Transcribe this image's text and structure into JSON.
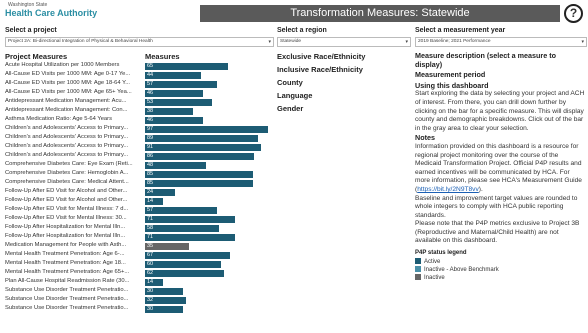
{
  "header": {
    "logo_small": "Washington State",
    "logo_main": "Health Care Authority",
    "title": "Transformation Measures: Statewide",
    "help": "?"
  },
  "filters": [
    {
      "label": "Select a project",
      "selected": "Project 2A: Bi-directional Integration of Physical & Behavioral Health"
    },
    {
      "label": "Select a region",
      "selected": "Statewide"
    },
    {
      "label": "Select a measurement year",
      "selected": "2019 Baseline; 2021 Performance"
    }
  ],
  "measures": {
    "heading": "Project Measures",
    "chart_heading": "Measures",
    "xlim": [
      0,
      100
    ],
    "rows": [
      {
        "name": "Acute Hospital Utilization per 1000 Members",
        "value": 65,
        "color": "#1d5c74"
      },
      {
        "name": "All-Cause ED Visits per 1000 MM: Age 0-17 Ye...",
        "value": 44,
        "color": "#1d5c74"
      },
      {
        "name": "All-Cause ED Visits per 1000 MM: Age 18-64 Y...",
        "value": 57,
        "color": "#1d5c74"
      },
      {
        "name": "All-Cause ED Visits per 1000 MM: Age 65+ Yea...",
        "value": 46,
        "color": "#1d5c74"
      },
      {
        "name": "Antidepressant Medication Management: Acu...",
        "value": 53,
        "color": "#1d5c74"
      },
      {
        "name": "Antidepressant Medication Management: Con...",
        "value": 38,
        "color": "#1d5c74"
      },
      {
        "name": "Asthma Medication Ratio: Age 5-64 Years",
        "value": 46,
        "color": "#1d5c74"
      },
      {
        "name": "Children's and Adolescents' Access to Primary...",
        "value": 97,
        "color": "#1d5c74"
      },
      {
        "name": "Children's and Adolescents' Access to Primary...",
        "value": 89,
        "color": "#1d5c74"
      },
      {
        "name": "Children's and Adolescents' Access to Primary...",
        "value": 91,
        "color": "#1d5c74"
      },
      {
        "name": "Children's and Adolescents' Access to Primary...",
        "value": 86,
        "color": "#1d5c74"
      },
      {
        "name": "Comprehensive Diabetes Care: Eye Exam (Reti...",
        "value": 48,
        "color": "#1d5c74"
      },
      {
        "name": "Comprehensive Diabetes Care: Hemoglobin A...",
        "value": 85,
        "color": "#1d5c74"
      },
      {
        "name": "Comprehensive Diabetes Care: Medical Attent...",
        "value": 85,
        "color": "#1d5c74"
      },
      {
        "name": "Follow-Up After ED Visit for Alcohol and Other...",
        "value": 24,
        "color": "#1d5c74"
      },
      {
        "name": "Follow-Up After ED Visit for Alcohol and Other...",
        "value": 14,
        "color": "#1d5c74"
      },
      {
        "name": "Follow-Up After ED Visit for Mental Illness: 7 d...",
        "value": 57,
        "color": "#1d5c74"
      },
      {
        "name": "Follow-Up After ED Visit for Mental Illness: 30...",
        "value": 71,
        "color": "#1d5c74"
      },
      {
        "name": "Follow-Up After Hospitalization for Mental Illn...",
        "value": 58,
        "color": "#1d5c74"
      },
      {
        "name": "Follow-Up After Hospitalization for Mental Illn...",
        "value": 71,
        "color": "#1d5c74"
      },
      {
        "name": "Medication Management for People with Asth...",
        "value": 35,
        "color": "#666666"
      },
      {
        "name": "Mental Health Treatment Penetration: Age 6-...",
        "value": 67,
        "color": "#1d5c74"
      },
      {
        "name": "Mental Health Treatment Penetration: Age 18...",
        "value": 60,
        "color": "#1d5c74"
      },
      {
        "name": "Mental Health Treatment Penetration: Age 65+...",
        "value": 62,
        "color": "#1d5c74"
      },
      {
        "name": "Plan All-Cause Hospital Readmission Rate (30...",
        "value": 14,
        "color": "#1d5c74"
      },
      {
        "name": "Substance Use Disorder Treatment Penetratio...",
        "value": 30,
        "color": "#1d5c74"
      },
      {
        "name": "Substance Use Disorder Treatment Penetratio...",
        "value": 32,
        "color": "#1d5c74"
      },
      {
        "name": "Substance Use Disorder Treatment Penetratio...",
        "value": 30,
        "color": "#1d5c74"
      }
    ]
  },
  "breakdowns": [
    "Exclusive Race/Ethnicity",
    "Inclusive Race/Ethnicity",
    "County",
    "Language",
    "Gender"
  ],
  "description": {
    "heading": "Measure description (select a measure to display)",
    "period": "Measurement period",
    "using_heading": "Using this dashboard",
    "using_text": "Start exploring the data by selecting your project and ACH of interest. From there, you can drill down further by clicking on the bar for a specific measure. This will display county and demographic breakdowns. Click out of the bar in the gray area to clear your selection.",
    "notes_heading": "Notes",
    "notes_before": "Information provided on this dashboard is a resource for regional project monitoring over the course of the Medicaid Transformation Project. Official P4P results and earned incentives will be communicated by HCA. For more information, please see HCA's Measurement Guide (",
    "notes_link": "https://bit.ly/2N9T8vv",
    "notes_after": ").",
    "notes_more": [
      "Baseline and improvement target values are rounded to whole integers to comply with HCA public reporting standards.",
      "Please note that the P4P metrics exclusive to Project 3B (Reproductive and Maternal/Child Health) are not available on this dashboard."
    ],
    "legend_heading": "P4P status legend",
    "legend": [
      {
        "label": "Active",
        "color": "#1d5c74"
      },
      {
        "label": "Inactive - Above Benchmark",
        "color": "#4a90a8"
      },
      {
        "label": "Inactive",
        "color": "#666666"
      }
    ]
  }
}
